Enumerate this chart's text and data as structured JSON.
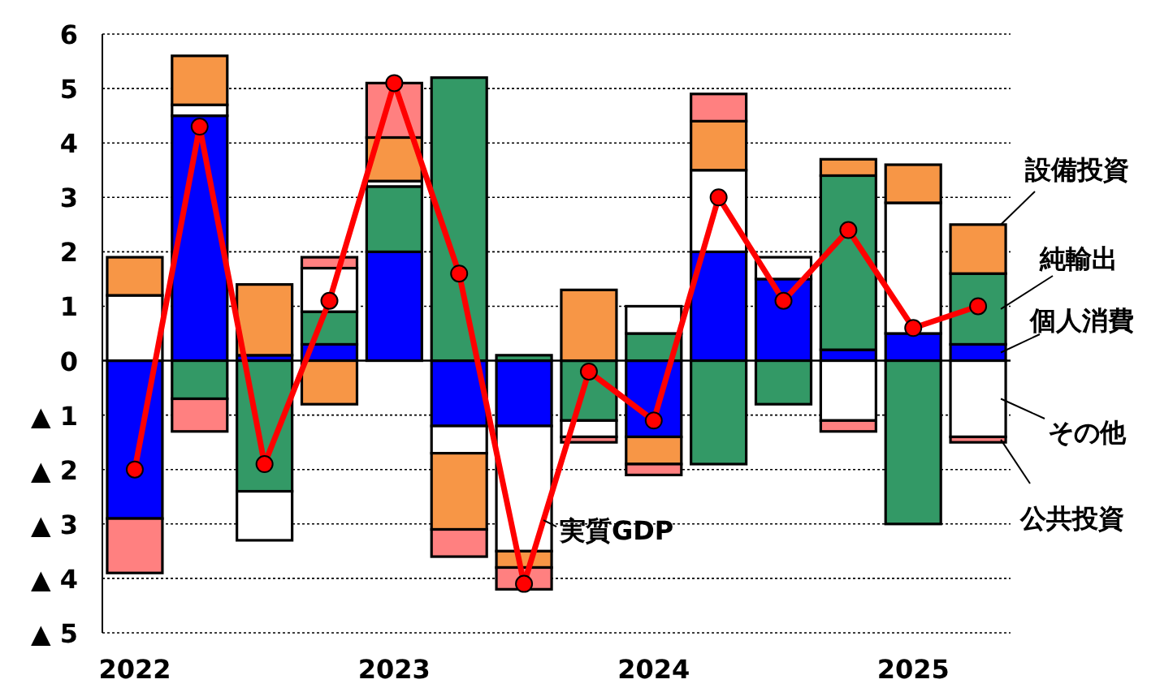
{
  "chart_data": {
    "type": "bar",
    "stacked": true,
    "grid": "y",
    "legend": "right",
    "categories": [
      "2022",
      null,
      null,
      null,
      "2023",
      null,
      null,
      null,
      "2024",
      null,
      null,
      null,
      "2025",
      null
    ],
    "ylim": [
      -5,
      6
    ],
    "yticks": [
      {
        "value": -5,
        "label": "▲ 5"
      },
      {
        "value": -4,
        "label": "▲ 4"
      },
      {
        "value": -3,
        "label": "▲ 3"
      },
      {
        "value": -2,
        "label": "▲ 2"
      },
      {
        "value": -1,
        "label": "▲ 1"
      },
      0,
      1,
      2,
      3,
      4,
      5,
      6
    ],
    "series": [
      {
        "name": "個人消費",
        "color": "#0000ff",
        "values": [
          -2.9,
          4.5,
          0.1,
          0.3,
          2.0,
          -1.2,
          -1.2,
          null,
          -1.4,
          2.0,
          1.5,
          0.2,
          0.5,
          0.3
        ]
      },
      {
        "name": "純輸出",
        "color": "#339966",
        "values": [
          null,
          -0.7,
          -2.4,
          0.6,
          1.2,
          5.2,
          0.1,
          -1.1,
          0.5,
          -1.9,
          -0.8,
          3.2,
          -3.0,
          1.3
        ]
      },
      {
        "name": "その他",
        "color": "#ffffff",
        "values": [
          1.2,
          0.2,
          -0.9,
          0.8,
          0.1,
          -0.5,
          -2.3,
          -0.3,
          0.5,
          1.5,
          0.4,
          -1.1,
          2.4,
          -1.4
        ]
      },
      {
        "name": "設備投資",
        "color": "#f79646",
        "values": [
          0.7,
          0.9,
          1.3,
          -0.8,
          0.8,
          -1.4,
          -0.3,
          1.3,
          -0.5,
          0.9,
          null,
          0.3,
          0.7,
          0.9
        ]
      },
      {
        "name": "公共投資",
        "color": "#ff8080",
        "values": [
          -1.0,
          -0.6,
          null,
          0.2,
          1.0,
          -0.5,
          -0.4,
          -0.1,
          -0.2,
          0.5,
          null,
          -0.2,
          null,
          -0.1
        ]
      },
      {
        "name": "実質GDP",
        "type": "line",
        "marker": "circle",
        "color": "#ff0000",
        "values": [
          -2.0,
          4.3,
          -1.9,
          1.1,
          5.1,
          1.6,
          -4.1,
          -0.2,
          -1.1,
          3.0,
          1.1,
          2.4,
          0.6,
          1.0
        ]
      }
    ]
  }
}
